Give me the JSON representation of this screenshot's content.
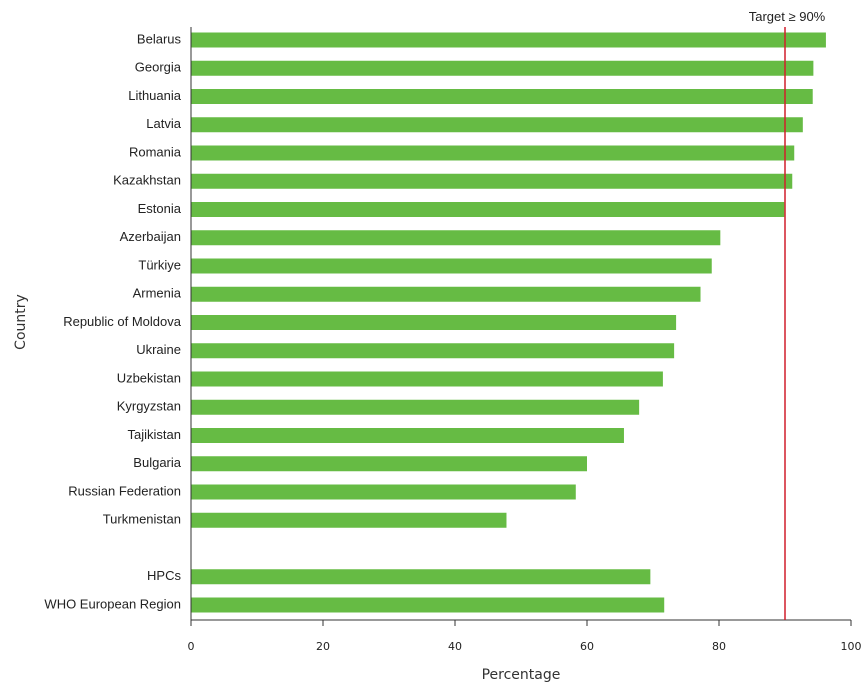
{
  "chart_data": {
    "type": "bar",
    "orientation": "horizontal",
    "xlabel": "Percentage",
    "ylabel": "Country",
    "xlim": [
      0,
      100
    ],
    "xticks": [
      "0",
      "20",
      "40",
      "60",
      "80",
      "100"
    ],
    "bar_color": "#66bb44",
    "target": {
      "value": 90,
      "label": "Target ≥ 90%",
      "color": "#d11f2b"
    },
    "categories": [
      "Belarus",
      "Georgia",
      "Lithuania",
      "Latvia",
      "Romania",
      "Kazakhstan",
      "Estonia",
      "Azerbaijan",
      "Türkiye",
      "Armenia",
      "Republic of Moldova",
      "Ukraine",
      "Uzbekistan",
      "Kyrgyzstan",
      "Tajikistan",
      "Bulgaria",
      "Russian Federation",
      "Turkmenistan",
      "HPCs",
      "WHO European Region"
    ],
    "values": [
      96.2,
      94.3,
      94.2,
      92.7,
      91.4,
      91.1,
      89.9,
      80.2,
      78.9,
      77.2,
      73.5,
      73.2,
      71.5,
      67.9,
      65.6,
      60.0,
      58.3,
      47.8,
      69.6,
      71.7
    ]
  }
}
